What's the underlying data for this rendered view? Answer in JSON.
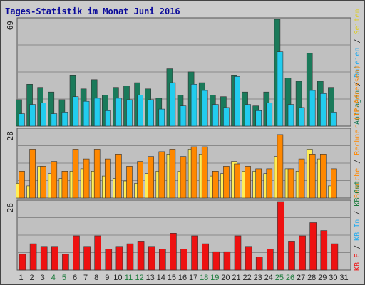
{
  "title": "Tages-Statistik im Monat Juni 2016",
  "colors": {
    "background": "#cccccc",
    "plot_bg": "#c0c0c0",
    "title": "#0a0a9a",
    "requests": "#1a7a5a",
    "files": "#22ccee",
    "pages": "#ffee55",
    "visits": "#ff8800",
    "kb_out": "#ee1111",
    "day_normal": "#222222",
    "day_weekend": "#1a7a3a",
    "day_today": "#1a7a3a"
  },
  "chart_data": [
    {
      "type": "bar",
      "panel": "top",
      "ymax_label": "69",
      "ylim": [
        0,
        69
      ],
      "categories": [
        "1",
        "2",
        "3",
        "4",
        "5",
        "6",
        "7",
        "8",
        "9",
        "10",
        "11",
        "12",
        "13",
        "14",
        "15",
        "16",
        "17",
        "18",
        "19",
        "20",
        "21",
        "22",
        "23",
        "24",
        "25",
        "26",
        "27",
        "28",
        "29",
        "30",
        "31"
      ],
      "series": [
        {
          "name": "Anfragen",
          "values": [
            17,
            27,
            25,
            22,
            17,
            33,
            24,
            30,
            20,
            25,
            26,
            28,
            24,
            18,
            37,
            20,
            35,
            28,
            20,
            19,
            33,
            22,
            13,
            22,
            69,
            31,
            29,
            47,
            29,
            25,
            0
          ]
        },
        {
          "name": "Dateien",
          "values": [
            8,
            14,
            15,
            8,
            9,
            19,
            16,
            18,
            10,
            18,
            17,
            20,
            17,
            11,
            28,
            13,
            27,
            23,
            14,
            12,
            32,
            14,
            10,
            15,
            48,
            14,
            12,
            23,
            21,
            9,
            0
          ]
        }
      ]
    },
    {
      "type": "bar",
      "panel": "middle",
      "ymax_label": "28",
      "ylim": [
        0,
        28
      ],
      "categories": [
        "1",
        "2",
        "3",
        "4",
        "5",
        "6",
        "7",
        "8",
        "9",
        "10",
        "11",
        "12",
        "13",
        "14",
        "15",
        "16",
        "17",
        "18",
        "19",
        "20",
        "21",
        "22",
        "23",
        "24",
        "25",
        "26",
        "27",
        "28",
        "29",
        "30",
        "31"
      ],
      "series": [
        {
          "name": "Seiten",
          "values": [
            6,
            5,
            13,
            10,
            8,
            11,
            12,
            11,
            9,
            8,
            7,
            6,
            10,
            11,
            18,
            11,
            20,
            18,
            9,
            10,
            15,
            11,
            11,
            10,
            17,
            12,
            11,
            20,
            16,
            5,
            0
          ]
        },
        {
          "name": "Besuche",
          "values": [
            11,
            20,
            13,
            15,
            11,
            20,
            16,
            20,
            16,
            18,
            13,
            15,
            17,
            19,
            20,
            17,
            21,
            21,
            11,
            13,
            14,
            13,
            12,
            12,
            26,
            12,
            16,
            18,
            18,
            12,
            0
          ]
        }
      ]
    },
    {
      "type": "bar",
      "panel": "bottom",
      "ymax_label": "26",
      "ylim": [
        0,
        26
      ],
      "categories": [
        "1",
        "2",
        "3",
        "4",
        "5",
        "6",
        "7",
        "8",
        "9",
        "10",
        "11",
        "12",
        "13",
        "14",
        "15",
        "16",
        "17",
        "18",
        "19",
        "20",
        "21",
        "22",
        "23",
        "24",
        "25",
        "26",
        "27",
        "28",
        "29",
        "30",
        "31"
      ],
      "series": [
        {
          "name": "KB F",
          "values": [
            6,
            10,
            9,
            9,
            6,
            13,
            9,
            13,
            8,
            9,
            10,
            11,
            9,
            8,
            14,
            8,
            13,
            10,
            7,
            7,
            13,
            9,
            5,
            8,
            26,
            11,
            13,
            18,
            15,
            10,
            0
          ]
        }
      ]
    }
  ],
  "legend": {
    "top": [
      {
        "text": "Anfragen",
        "color": "#1a7a5a"
      },
      {
        "text": " / ",
        "color": "#222222"
      },
      {
        "text": "Dateien",
        "color": "#22aaee"
      },
      {
        "text": " / ",
        "color": "#222222"
      },
      {
        "text": "Seiten",
        "color": "#ddcc22"
      }
    ],
    "middle": [
      {
        "text": "Besuche",
        "color": "#ff8800"
      },
      {
        "text": " / ",
        "color": "#222222"
      },
      {
        "text": "Rechner (IP-Adressen)",
        "color": "#ff8800"
      }
    ],
    "bottom": [
      {
        "text": "KB F",
        "color": "#ee1111"
      },
      {
        "text": " / ",
        "color": "#222222"
      },
      {
        "text": "KB In",
        "color": "#22aaee"
      },
      {
        "text": " / ",
        "color": "#222222"
      },
      {
        "text": "KB Out",
        "color": "#1a7a3a"
      }
    ]
  },
  "day_colors": {
    "weekend_days": [
      "4",
      "5",
      "11",
      "12",
      "18",
      "19",
      "25",
      "26"
    ]
  }
}
